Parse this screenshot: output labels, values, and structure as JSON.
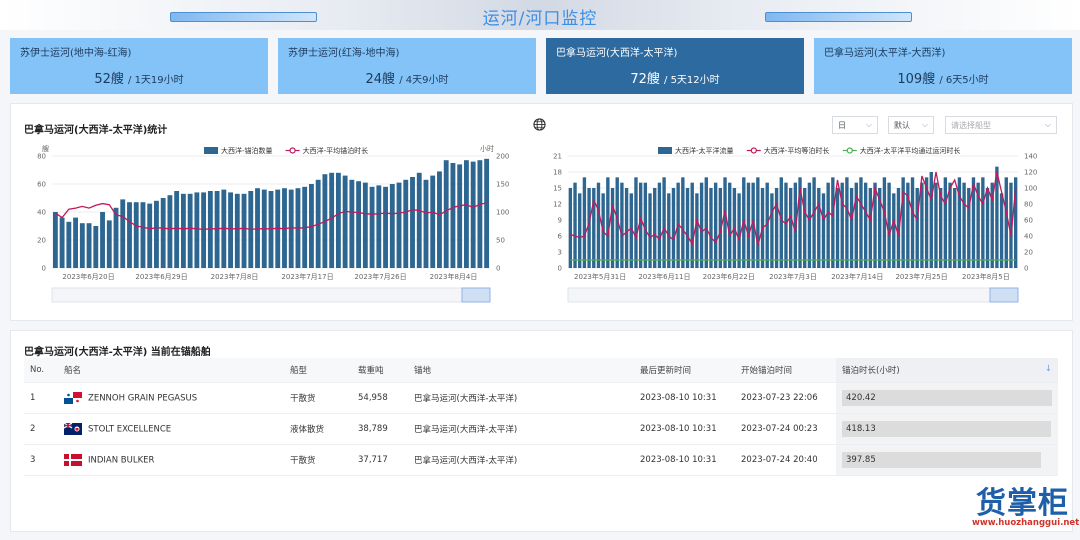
{
  "header": {
    "title": "运河/河口监控"
  },
  "cards": [
    {
      "name": "苏伊士运河(地中海-红海)",
      "count": "52艘",
      "duration": "/ 1天19小时"
    },
    {
      "name": "苏伊士运河(红海-地中海)",
      "count": "24艘",
      "duration": "/ 4天9小时"
    },
    {
      "name": "巴拿马运河(大西洋-太平洋)",
      "count": "72艘",
      "duration": "/ 5天12小时"
    },
    {
      "name": "巴拿马运河(太平洋-大西洋)",
      "count": "109艘",
      "duration": "/ 6天5小时"
    }
  ],
  "colors": {
    "bar": "#2d6690",
    "line": "#c2185b",
    "green": "#4caf50",
    "active": "#2d6aa0",
    "card": "#84c3f7"
  },
  "chart_left": {
    "title": "巴拿马运河(大西洋-太平洋)统计",
    "y_unit": "艘",
    "y2_unit": "小时",
    "legend": [
      "大西洋-锚泊数量",
      "大西洋-平均锚泊时长"
    ]
  },
  "chart_right": {
    "globe_icon": "globe-icon",
    "legend": [
      "大西洋-太平洋流量",
      "大西洋-平均等泊时长",
      "大西洋-太平洋平均通过运河时长"
    ],
    "filters": {
      "period": "日",
      "mode": "默认",
      "ship_type_placeholder": "请选择船型"
    }
  },
  "chart_data": [
    {
      "type": "bar",
      "title": "巴拿马运河(大西洋-太平洋)统计",
      "ylabel": "艘",
      "y2label": "小时",
      "x_ticks": [
        "2023年6月20日",
        "2023年6月29日",
        "2023年7月8日",
        "2023年7月17日",
        "2023年7月26日",
        "2023年8月4日"
      ],
      "ylim": [
        0,
        80
      ],
      "yticks": [
        0,
        20,
        40,
        60,
        80
      ],
      "y2lim": [
        0,
        200
      ],
      "y2ticks": [
        0,
        50,
        100,
        150,
        200
      ],
      "series": [
        {
          "name": "大西洋-锚泊数量",
          "type": "bar",
          "values": [
            40,
            36,
            33,
            36,
            32,
            32,
            30,
            40,
            34,
            43,
            49,
            47,
            47,
            47,
            46,
            48,
            50,
            52,
            55,
            53,
            53,
            54,
            54,
            55,
            55,
            56,
            54,
            53,
            53,
            55,
            57,
            56,
            55,
            56,
            57,
            56,
            57,
            58,
            60,
            63,
            67,
            68,
            68,
            66,
            63,
            62,
            61,
            58,
            59,
            58,
            60,
            61,
            63,
            65,
            68,
            63,
            66,
            69,
            77,
            75,
            74,
            77,
            76,
            77,
            78
          ]
        },
        {
          "name": "大西洋-平均锚泊时长",
          "type": "line",
          "values": [
            98,
            90,
            105,
            107,
            110,
            107,
            112,
            115,
            113,
            95,
            92,
            83,
            75,
            73,
            70,
            72,
            71,
            70,
            71,
            70,
            71,
            70,
            69,
            70,
            70,
            71,
            70,
            70,
            71,
            69,
            70,
            70,
            70,
            71,
            70,
            72,
            71,
            72,
            74,
            78,
            83,
            89,
            97,
            101,
            100,
            99,
            97,
            96,
            97,
            98,
            97,
            98,
            100,
            104,
            103,
            98,
            100,
            95,
            102,
            108,
            111,
            113,
            108,
            114,
            116
          ]
        }
      ]
    },
    {
      "type": "bar",
      "ylabel": "",
      "y2label": "",
      "x_ticks": [
        "2023年5月31日",
        "2023年6月11日",
        "2023年6月22日",
        "2023年7月3日",
        "2023年7月14日",
        "2023年7月25日",
        "2023年8月5日"
      ],
      "ylim": [
        0,
        21
      ],
      "yticks": [
        0,
        3,
        6,
        9,
        12,
        15,
        18,
        21
      ],
      "y2lim": [
        0,
        140
      ],
      "y2ticks": [
        0,
        20,
        40,
        60,
        80,
        100,
        120,
        140
      ],
      "series": [
        {
          "name": "大西洋-太平洋流量",
          "type": "bar",
          "values": [
            15,
            16,
            14,
            17,
            15,
            15,
            16,
            14,
            17,
            15,
            17,
            16,
            15,
            14,
            17,
            16,
            16,
            14,
            15,
            16,
            17,
            14,
            15,
            16,
            17,
            15,
            16,
            14,
            16,
            17,
            15,
            16,
            15,
            17,
            16,
            15,
            14,
            17,
            16,
            16,
            17,
            15,
            16,
            14,
            15,
            17,
            16,
            15,
            16,
            17,
            15,
            16,
            17,
            15,
            14,
            16,
            17,
            15,
            16,
            17,
            15,
            16,
            17,
            16,
            15,
            16,
            15,
            17,
            16,
            14,
            15,
            17,
            16,
            17,
            15,
            16,
            17,
            18,
            16,
            15,
            17,
            16,
            15,
            17,
            16,
            15,
            17,
            16,
            17,
            15,
            16,
            19,
            14,
            17,
            16,
            17
          ]
        },
        {
          "name": "大西洋-平均等泊时长",
          "type": "line",
          "values": [
            42,
            40,
            38,
            40,
            56,
            85,
            72,
            45,
            40,
            78,
            62,
            40,
            45,
            50,
            38,
            62,
            48,
            38,
            42,
            36,
            50,
            40,
            35,
            55,
            48,
            40,
            30,
            60,
            45,
            50,
            38,
            32,
            45,
            72,
            40,
            50,
            35,
            60,
            40,
            60,
            28,
            50,
            55,
            70,
            80,
            60,
            55,
            65,
            45,
            100,
            70,
            60,
            70,
            80,
            60,
            70,
            65,
            110,
            80,
            75,
            60,
            90,
            80,
            70,
            60,
            100,
            85,
            70,
            40,
            60,
            40,
            95,
            90,
            70,
            60,
            115,
            100,
            85,
            120,
            90,
            80,
            100,
            110,
            90,
            80,
            75,
            105,
            90,
            80,
            100,
            85,
            120,
            95,
            70,
            40,
            100
          ]
        },
        {
          "name": "大西洋-太平洋平均通过运河时长",
          "type": "line",
          "values": [
            10,
            10,
            10,
            10,
            10,
            10,
            10,
            10,
            10,
            10,
            10,
            10,
            10,
            10,
            10,
            10,
            10,
            10,
            10,
            10,
            10,
            10,
            10,
            10,
            10,
            10,
            10,
            10,
            10,
            10,
            10,
            10,
            10,
            10,
            10,
            10,
            10,
            10,
            10,
            10,
            10,
            10,
            10,
            10,
            10,
            10,
            10,
            10,
            10,
            10,
            10,
            10,
            10,
            10,
            10,
            10,
            10,
            10,
            10,
            10,
            10,
            10,
            10,
            10,
            10,
            10,
            10,
            10,
            10,
            10,
            10,
            10,
            10,
            10,
            10,
            10,
            10,
            10,
            10,
            10,
            10,
            10,
            10,
            10,
            10,
            10,
            10,
            10,
            10,
            10,
            10,
            10,
            10,
            10,
            10,
            10
          ]
        }
      ]
    }
  ],
  "table": {
    "title": "巴拿马运河(大西洋-太平洋) 当前在锚船舶",
    "headers": [
      "No.",
      "船名",
      "船型",
      "载重吨",
      "锚地",
      "最后更新时间",
      "开始锚泊时间",
      "锚泊时长(小时)"
    ],
    "rows": [
      {
        "no": "1",
        "name": "ZENNOH GRAIN PEGASUS",
        "type": "干散货",
        "dwt": "54,958",
        "anchorage": "巴拿马运河(大西洋-太平洋)",
        "updated": "2023-08-10 10:31",
        "start": "2023-07-23 22:06",
        "hours": "420.42",
        "fill": 1.0
      },
      {
        "no": "2",
        "name": "STOLT EXCELLENCE",
        "type": "液体散货",
        "dwt": "38,789",
        "anchorage": "巴拿马运河(大西洋-太平洋)",
        "updated": "2023-08-10 10:31",
        "start": "2023-07-24 00:23",
        "hours": "418.13",
        "fill": 0.995
      },
      {
        "no": "3",
        "name": "INDIAN BULKER",
        "type": "干散货",
        "dwt": "37,717",
        "anchorage": "巴拿马运河(大西洋-太平洋)",
        "updated": "2023-08-10 10:31",
        "start": "2023-07-24 20:40",
        "hours": "397.85",
        "fill": 0.946
      }
    ]
  },
  "watermark": {
    "brand": "货掌柜",
    "url": "www.huozhanggui.net"
  }
}
